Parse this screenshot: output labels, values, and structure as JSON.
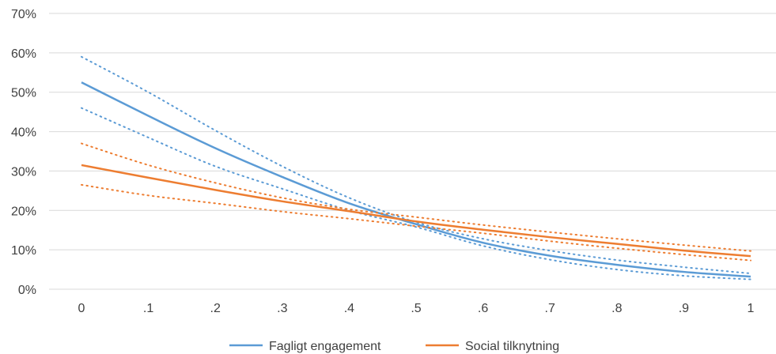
{
  "chart_data": {
    "type": "line",
    "title": "",
    "xlabel": "",
    "ylabel": "",
    "x": [
      0,
      0.1,
      0.2,
      0.3,
      0.4,
      0.5,
      0.6,
      0.7,
      0.8,
      0.9,
      1
    ],
    "x_tick_labels": [
      "0",
      ".1",
      ".2",
      ".3",
      ".4",
      ".5",
      ".6",
      ".7",
      ".8",
      ".9",
      "1"
    ],
    "y_ticks": [
      0,
      10,
      20,
      30,
      40,
      50,
      60,
      70
    ],
    "y_tick_labels": [
      "0%",
      "10%",
      "20%",
      "30%",
      "40%",
      "50%",
      "60%",
      "70%"
    ],
    "ylim": [
      0,
      70
    ],
    "xlim": [
      0,
      1
    ],
    "grid": "horizontal",
    "legend_position": "bottom",
    "series": [
      {
        "name": "Fagligt engagement",
        "color": "#5b9bd5",
        "values": [
          52.5,
          44.0,
          35.8,
          28.5,
          21.8,
          16.5,
          11.8,
          8.5,
          6.2,
          4.4,
          3.2
        ],
        "ci_upper": [
          59.0,
          50.0,
          40.3,
          31.2,
          23.2,
          17.0,
          12.8,
          9.8,
          7.4,
          5.6,
          4.0
        ],
        "ci_lower": [
          46.0,
          38.5,
          31.2,
          25.5,
          20.0,
          15.8,
          11.0,
          7.5,
          5.0,
          3.4,
          2.5
        ]
      },
      {
        "name": "Social tilknytning",
        "color": "#ed7d31",
        "values": [
          31.5,
          28.3,
          25.2,
          22.3,
          19.8,
          17.2,
          15.1,
          13.2,
          11.5,
          9.8,
          8.4
        ],
        "ci_upper": [
          37.0,
          31.5,
          27.0,
          23.2,
          20.3,
          18.3,
          16.3,
          14.5,
          12.8,
          11.2,
          9.7
        ],
        "ci_lower": [
          26.5,
          23.8,
          21.8,
          19.7,
          17.9,
          16.0,
          14.2,
          12.2,
          10.4,
          8.8,
          7.3
        ]
      }
    ]
  }
}
